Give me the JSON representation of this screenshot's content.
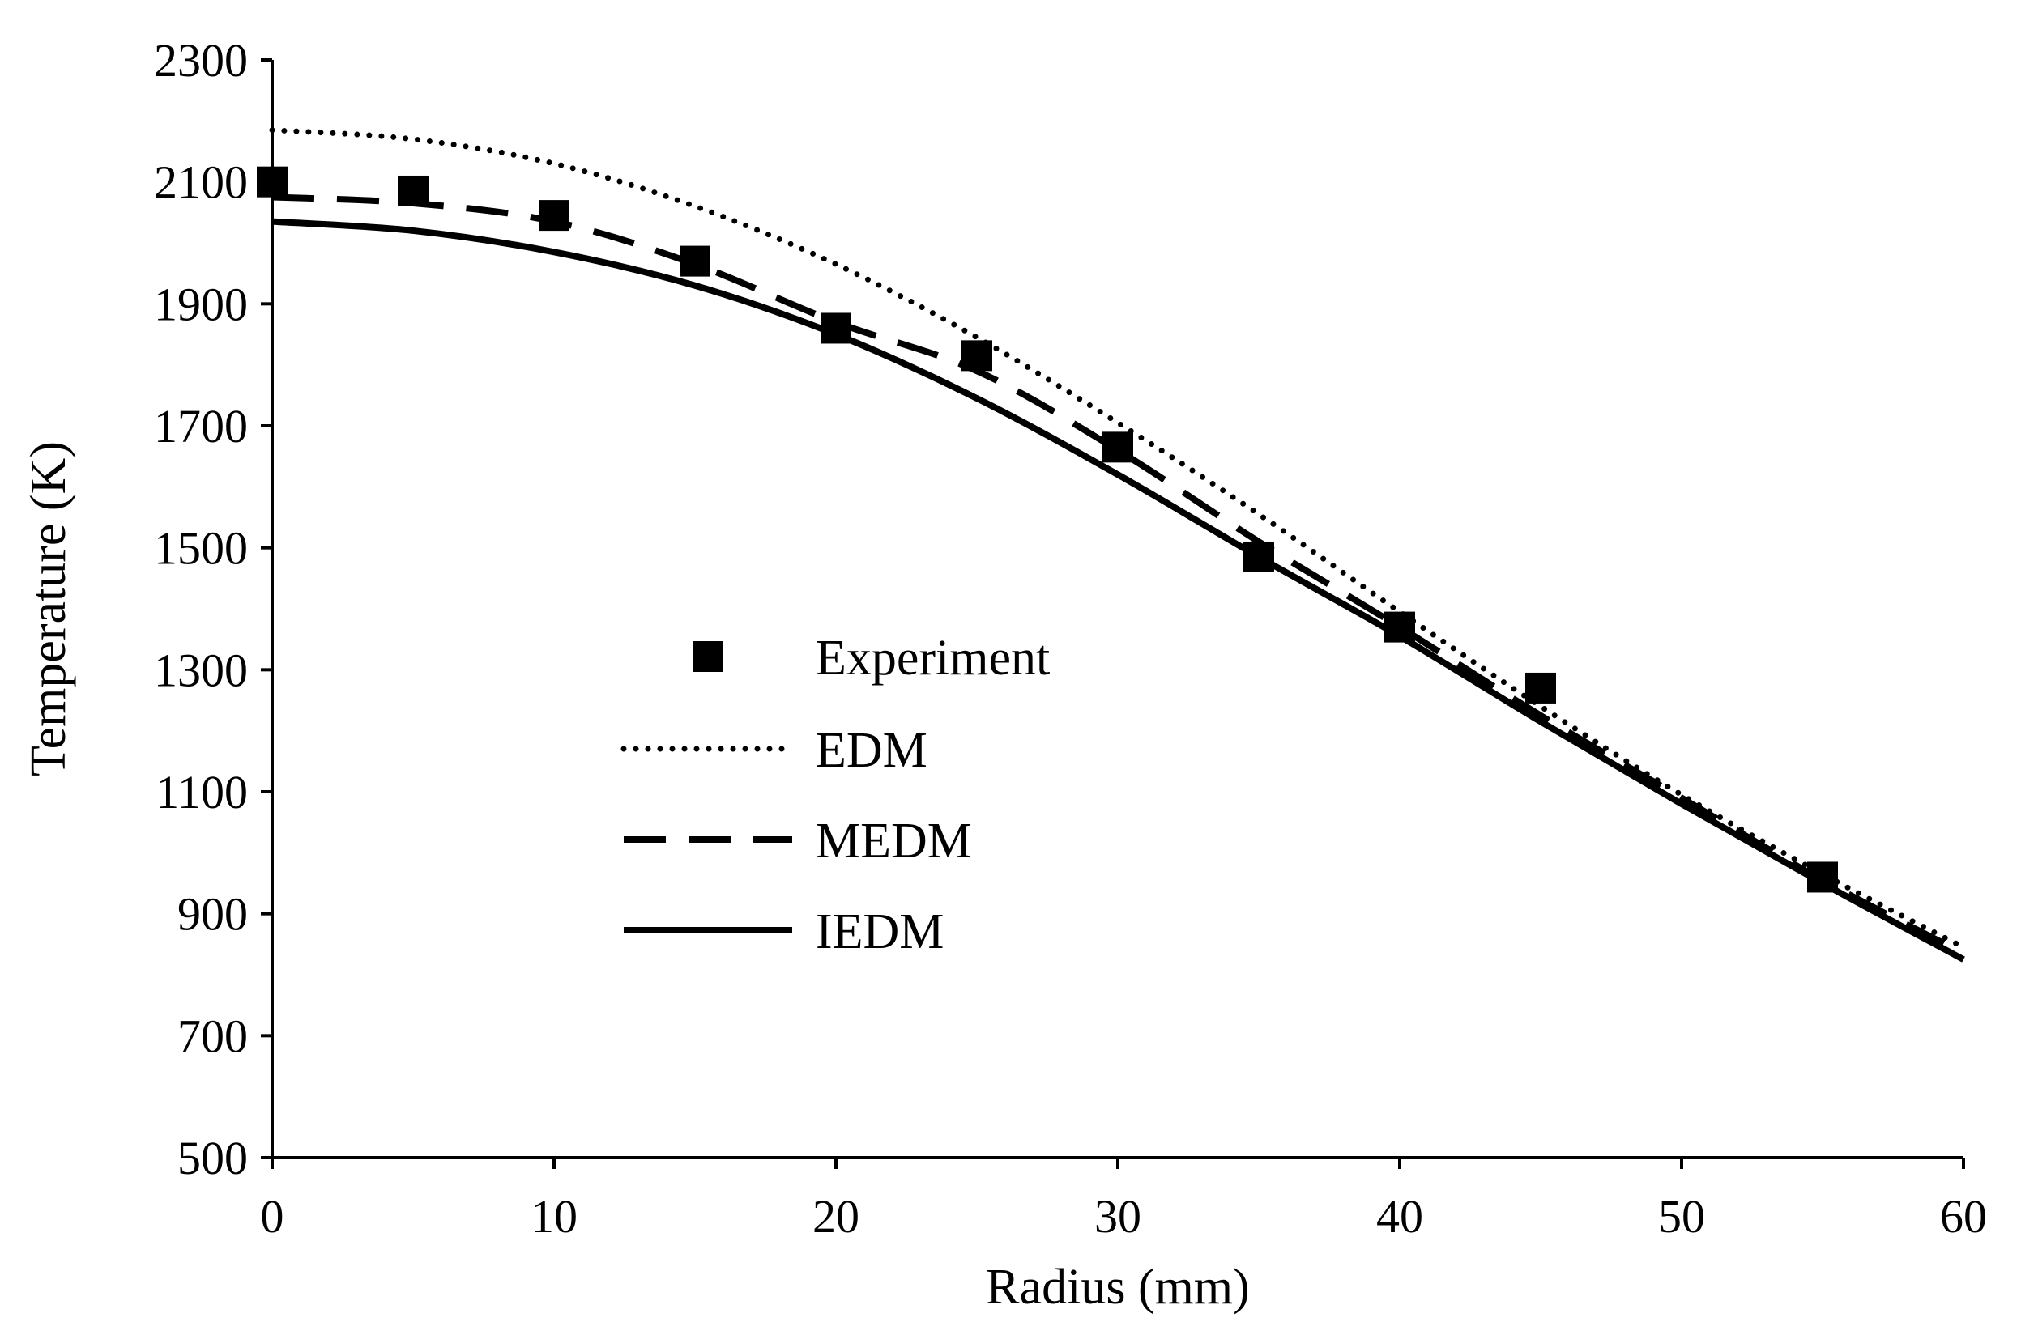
{
  "chart_data": {
    "type": "line",
    "title": "",
    "xlabel": "Radius (mm)",
    "ylabel": "Temperature (K)",
    "xlim": [
      0,
      60
    ],
    "ylim": [
      500,
      2300
    ],
    "xticks": [
      "0",
      "10",
      "20",
      "30",
      "40",
      "50",
      "60"
    ],
    "yticks": [
      "500",
      "700",
      "900",
      "1100",
      "1300",
      "1500",
      "1700",
      "1900",
      "2100",
      "2300"
    ],
    "grid": false,
    "legend_position": "center-left",
    "series": [
      {
        "name": "Experiment",
        "style": "markers",
        "marker": "square",
        "x": [
          0,
          5,
          10,
          15,
          20,
          25,
          30,
          35,
          40,
          45,
          55
        ],
        "y": [
          2100,
          2085,
          2045,
          1970,
          1860,
          1815,
          1665,
          1485,
          1370,
          1270,
          960
        ]
      },
      {
        "name": "EDM",
        "style": "dotted",
        "x": [
          0,
          5,
          10,
          15,
          20,
          25,
          30,
          35,
          40,
          45,
          50,
          55,
          60
        ],
        "y": [
          2185,
          2170,
          2130,
          2060,
          1965,
          1845,
          1705,
          1555,
          1395,
          1240,
          1095,
          965,
          845
        ]
      },
      {
        "name": "MEDM",
        "style": "dashed",
        "x": [
          0,
          5,
          10,
          15,
          20,
          25,
          30,
          35,
          40,
          45,
          50,
          55,
          60
        ],
        "y": [
          2075,
          2065,
          2035,
          1965,
          1870,
          1790,
          1660,
          1510,
          1370,
          1225,
          1090,
          955,
          835
        ]
      },
      {
        "name": "IEDM",
        "style": "solid",
        "x": [
          0,
          5,
          10,
          15,
          20,
          25,
          30,
          35,
          40,
          45,
          50,
          55,
          60
        ],
        "y": [
          2035,
          2020,
          1985,
          1930,
          1850,
          1745,
          1620,
          1485,
          1355,
          1215,
          1080,
          950,
          825
        ]
      }
    ]
  }
}
